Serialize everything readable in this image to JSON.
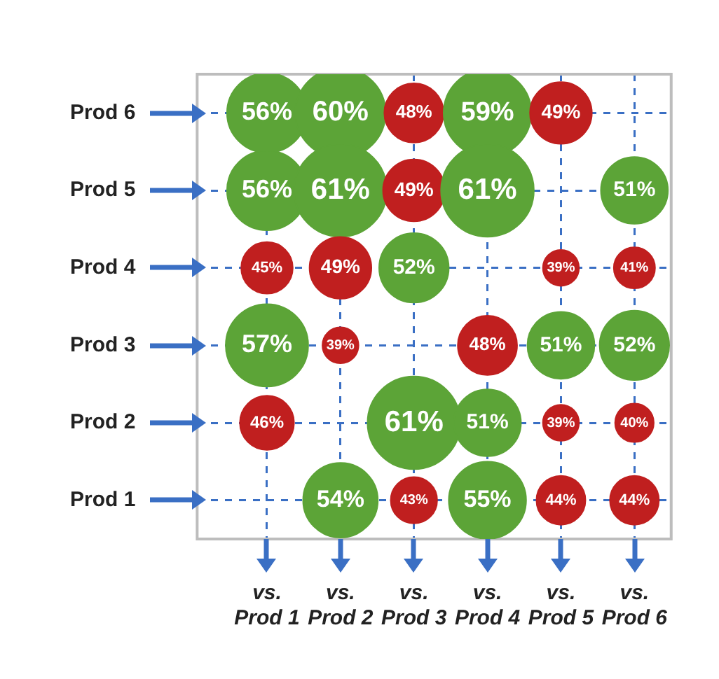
{
  "chart_data": {
    "type": "heatmap",
    "categories": [
      "vs.\nProd 1",
      "vs.\nProd 2",
      "vs.\nProd 3",
      "vs.\nProd 4",
      "vs.\nProd 5",
      "vs.\nProd 6"
    ],
    "y_categories": [
      "Prod 6",
      "Prod 5",
      "Prod 4",
      "Prod 3",
      "Prod 2",
      "Prod 1"
    ],
    "cells": [
      [
        56,
        60,
        48,
        59,
        49,
        null
      ],
      [
        56,
        61,
        49,
        61,
        null,
        51
      ],
      [
        45,
        49,
        52,
        null,
        39,
        41
      ],
      [
        57,
        39,
        null,
        48,
        51,
        52
      ],
      [
        46,
        null,
        61,
        51,
        39,
        40
      ],
      [
        null,
        54,
        43,
        55,
        44,
        44
      ]
    ],
    "cell_labels": [
      [
        "56%",
        "60%",
        "48%",
        "59%",
        "49%",
        null
      ],
      [
        "56%",
        "61%",
        "49%",
        "61%",
        null,
        "51%"
      ],
      [
        "45%",
        "49%",
        "52%",
        null,
        "39%",
        "41%"
      ],
      [
        "57%",
        "39%",
        null,
        "48%",
        "51%",
        "52%"
      ],
      [
        "46%",
        null,
        "61%",
        "51%",
        "39%",
        "40%"
      ],
      [
        null,
        "54%",
        "43%",
        "55%",
        "44%",
        "44%"
      ]
    ],
    "colors": [
      [
        "#5ca437",
        "#5ca437",
        "#c01f1f",
        "#5ca437",
        "#c01f1f",
        null
      ],
      [
        "#5ca437",
        "#5ca437",
        "#c01f1f",
        "#5ca437",
        null,
        "#5ca437"
      ],
      [
        "#c01f1f",
        "#c01f1f",
        "#5ca437",
        null,
        "#c01f1f",
        "#c01f1f"
      ],
      [
        "#5ca437",
        "#c01f1f",
        null,
        "#c01f1f",
        "#5ca437",
        "#5ca437"
      ],
      [
        "#c01f1f",
        null,
        "#5ca437",
        "#5ca437",
        "#c01f1f",
        "#c01f1f"
      ],
      [
        null,
        "#5ca437",
        "#c01f1f",
        "#5ca437",
        "#c01f1f",
        "#c01f1f"
      ]
    ],
    "grid": true,
    "legend": false
  }
}
